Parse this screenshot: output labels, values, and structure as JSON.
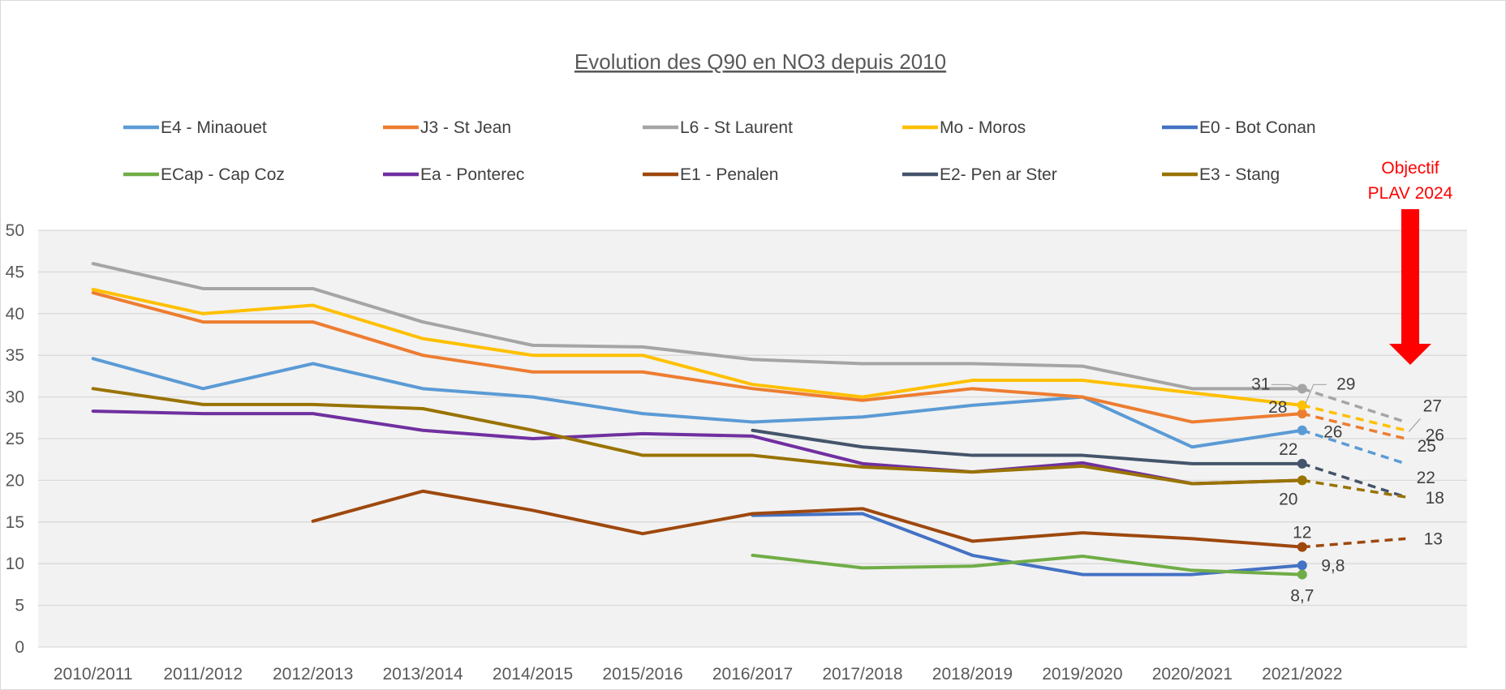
{
  "chart_data": {
    "type": "line",
    "title": "Evolution des Q90 en NO3 depuis 2010",
    "xlabel": "",
    "ylabel": "",
    "ylim": [
      0,
      50
    ],
    "yticks": [
      "0",
      "5",
      "10",
      "15",
      "20",
      "25",
      "30",
      "35",
      "40",
      "45",
      "50"
    ],
    "grid": true,
    "legend_position": "top",
    "categories": [
      "2010/2011",
      "2011/2012",
      "2012/2013",
      "2013/2014",
      "2014/2015",
      "2015/2016",
      "2016/2017",
      "2017/2018",
      "2018/2019",
      "2019/2020",
      "2020/2021",
      "2021/2022"
    ],
    "projection_category": "2024",
    "series": [
      {
        "name": "E4 - Minaouet",
        "color": "#5b9bd5",
        "values": [
          34.6,
          31,
          34,
          31,
          30,
          28,
          27,
          27.6,
          29,
          30,
          24,
          26
        ],
        "last_label": "26",
        "target": 22,
        "target_label": "22"
      },
      {
        "name": "J3 - St Jean",
        "color": "#ed7d31",
        "values": [
          42.5,
          39,
          39,
          35,
          33,
          33,
          31,
          29.6,
          31,
          30,
          27,
          28
        ],
        "last_label": "28",
        "target": 25,
        "target_label": "25"
      },
      {
        "name": "L6 - St Laurent",
        "color": "#a5a5a5",
        "values": [
          46,
          43,
          43,
          39,
          36.2,
          36,
          34.5,
          34,
          34,
          33.7,
          31,
          31
        ],
        "last_label": "31",
        "target": 27,
        "target_label": "27"
      },
      {
        "name": "Mo - Moros",
        "color": "#ffc000",
        "values": [
          42.9,
          40,
          41,
          37,
          35,
          35,
          31.5,
          30,
          32,
          32,
          30.5,
          29
        ],
        "last_label": "29",
        "target": 26,
        "target_label": "26"
      },
      {
        "name": "E0 - Bot Conan",
        "color": "#4472c4",
        "values": [
          null,
          null,
          null,
          null,
          null,
          null,
          15.8,
          16,
          11,
          8.7,
          8.7,
          9.8
        ],
        "last_label": "9,8",
        "target": null,
        "target_label": ""
      },
      {
        "name": "ECap - Cap Coz",
        "color": "#70ad47",
        "values": [
          null,
          null,
          null,
          null,
          null,
          null,
          11,
          9.5,
          9.7,
          10.9,
          9.2,
          8.7
        ],
        "last_label": "8,7",
        "target": null,
        "target_label": ""
      },
      {
        "name": "Ea - Ponterec",
        "color": "#7030a0",
        "values": [
          28.3,
          28,
          28,
          26,
          25,
          25.6,
          25.3,
          22,
          21,
          22.1,
          19.6,
          20
        ],
        "last_label": "",
        "target": null,
        "target_label": ""
      },
      {
        "name": "E1 - Penalen",
        "color": "#9e480e",
        "values": [
          null,
          null,
          15.1,
          18.7,
          16.4,
          13.6,
          16,
          16.6,
          12.7,
          13.7,
          13,
          12
        ],
        "last_label": "12",
        "target": 13,
        "target_label": "13"
      },
      {
        "name": "E2- Pen ar Ster",
        "color": "#44546a",
        "values": [
          null,
          null,
          null,
          null,
          null,
          null,
          26,
          24,
          23,
          23,
          22,
          22
        ],
        "last_label": "22",
        "target": 18,
        "target_label": "18"
      },
      {
        "name": "E3 - Stang",
        "color": "#997300",
        "values": [
          31,
          29.1,
          29.1,
          28.6,
          26,
          23,
          23,
          21.6,
          21,
          21.7,
          19.6,
          20
        ],
        "last_label": "20",
        "target": 18,
        "target_label": ""
      }
    ],
    "annotation": {
      "line1": "Objectif",
      "line2": "PLAV 2024",
      "color": "#ff0000"
    }
  }
}
